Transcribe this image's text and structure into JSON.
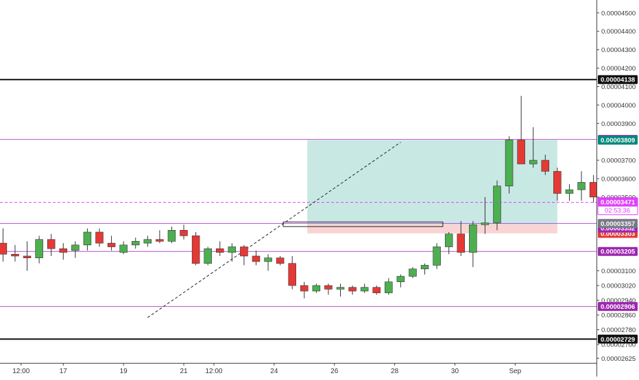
{
  "chart_data": {
    "type": "candlestick",
    "colors": {
      "up": "#4caf50",
      "down": "#e53935",
      "wick": "#333333",
      "hline_purple": "#b44fd1",
      "hline_black": "#111111",
      "current_price": "#e040fb",
      "profit_zone": "#c8e8e4",
      "loss_zone": "#fad4d4",
      "label_purple": "#9c27b0",
      "label_black": "#111111",
      "label_teal": "#00897b",
      "label_red": "#e53935",
      "label_gray": "#787b86",
      "label_pink": "#e040fb"
    },
    "x_ticks": [
      {
        "label": "12:00",
        "t": 1
      },
      {
        "label": "17",
        "t": 8
      },
      {
        "label": "19",
        "t": 18
      },
      {
        "label": "21",
        "t": 28
      },
      {
        "label": "12:00",
        "t": 33
      },
      {
        "label": "24",
        "t": 43
      },
      {
        "label": "26",
        "t": 53
      },
      {
        "label": "28",
        "t": 63
      },
      {
        "label": "30",
        "t": 73
      },
      {
        "label": "Sep",
        "t": 83
      }
    ],
    "y_ticks": [
      "0.00004500",
      "0.00004400",
      "0.00004300",
      "0.00004200",
      "0.00004100",
      "0.00004000",
      "0.00003900",
      "0.00003700",
      "0.00003600",
      "0.00003500",
      "0.00003100",
      "0.00003020",
      "0.00002940",
      "0.00002860",
      "0.00002780",
      "0.00002700",
      "0.00002625"
    ],
    "horizontal_lines": [
      {
        "value": 4.138e-05,
        "label": "0.00004138",
        "style": "black"
      },
      {
        "value": 3.813e-05,
        "label": "0.00003813",
        "style": "purple"
      },
      {
        "value": 3.357e-05,
        "label": "0.00003357",
        "style": "purple"
      },
      {
        "value": 3.205e-05,
        "label": "0.00003205",
        "style": "purple"
      },
      {
        "value": 2.906e-05,
        "label": "0.00002906",
        "style": "purple"
      },
      {
        "value": 2.729e-05,
        "label": "0.00002729",
        "style": "black"
      }
    ],
    "position": {
      "entry": 3.352e-05,
      "target": 3.809e-05,
      "stop": 3.303e-05,
      "start_t": 48.5,
      "end_t": 90,
      "entry_label": "0.00003352",
      "target_label": "0.00003809",
      "stop_label": "0.00003303",
      "gray_label": "0.00003357"
    },
    "current_price": {
      "value": 3.471e-05,
      "label": "0.00003471",
      "countdown": "02:53:36"
    },
    "trendline": {
      "t1": 22,
      "v1": 2.846e-05,
      "t2": 64,
      "v2": 3.798e-05
    },
    "box": {
      "t1": 44.5,
      "t2": 71,
      "v_top": 3.365e-05,
      "v_bottom": 3.34e-05
    },
    "candles": [
      {
        "o": 3.25e-05,
        "h": 3.33e-05,
        "l": 3.15e-05,
        "c": 3.19e-05
      },
      {
        "o": 3.19e-05,
        "h": 3.24e-05,
        "l": 3.15e-05,
        "c": 3.18e-05
      },
      {
        "o": 3.18e-05,
        "h": 3.26e-05,
        "l": 3.1e-05,
        "c": 3.17e-05
      },
      {
        "o": 3.17e-05,
        "h": 3.29e-05,
        "l": 3.14e-05,
        "c": 3.27e-05
      },
      {
        "o": 3.27e-05,
        "h": 3.3e-05,
        "l": 3.18e-05,
        "c": 3.22e-05
      },
      {
        "o": 3.22e-05,
        "h": 3.25e-05,
        "l": 3.16e-05,
        "c": 3.2e-05
      },
      {
        "o": 3.21e-05,
        "h": 3.26e-05,
        "l": 3.17e-05,
        "c": 3.24e-05
      },
      {
        "o": 3.24e-05,
        "h": 3.33e-05,
        "l": 3.21e-05,
        "c": 3.31e-05
      },
      {
        "o": 3.31e-05,
        "h": 3.33e-05,
        "l": 3.23e-05,
        "c": 3.25e-05
      },
      {
        "o": 3.25e-05,
        "h": 3.29e-05,
        "l": 3.21e-05,
        "c": 3.23e-05
      },
      {
        "o": 3.2e-05,
        "h": 3.26e-05,
        "l": 3.19e-05,
        "c": 3.24e-05
      },
      {
        "o": 3.24e-05,
        "h": 3.28e-05,
        "l": 3.22e-05,
        "c": 3.26e-05
      },
      {
        "o": 3.25e-05,
        "h": 3.29e-05,
        "l": 3.23e-05,
        "c": 3.27e-05
      },
      {
        "o": 3.27e-05,
        "h": 3.32e-05,
        "l": 3.25e-05,
        "c": 3.26e-05
      },
      {
        "o": 3.26e-05,
        "h": 3.34e-05,
        "l": 3.25e-05,
        "c": 3.32e-05
      },
      {
        "o": 3.32e-05,
        "h": 3.35e-05,
        "l": 3.27e-05,
        "c": 3.29e-05
      },
      {
        "o": 3.29e-05,
        "h": 3.31e-05,
        "l": 3.13e-05,
        "c": 3.14e-05
      },
      {
        "o": 3.14e-05,
        "h": 3.23e-05,
        "l": 3.13e-05,
        "c": 3.22e-05
      },
      {
        "o": 3.22e-05,
        "h": 3.26e-05,
        "l": 3.18e-05,
        "c": 3.2e-05
      },
      {
        "o": 3.2e-05,
        "h": 3.25e-05,
        "l": 3.15e-05,
        "c": 3.23e-05
      },
      {
        "o": 3.23e-05,
        "h": 3.24e-05,
        "l": 3.13e-05,
        "c": 3.18e-05
      },
      {
        "o": 3.18e-05,
        "h": 3.21e-05,
        "l": 3.13e-05,
        "c": 3.15e-05
      },
      {
        "o": 3.15e-05,
        "h": 3.19e-05,
        "l": 3.1e-05,
        "c": 3.17e-05
      },
      {
        "o": 3.17e-05,
        "h": 3.18e-05,
        "l": 3.13e-05,
        "c": 3.14e-05
      },
      {
        "o": 3.14e-05,
        "h": 3.18e-05,
        "l": 3e-05,
        "c": 3.02e-05
      },
      {
        "o": 3.02e-05,
        "h": 3.04e-05,
        "l": 2.95e-05,
        "c": 2.99e-05
      },
      {
        "o": 2.99e-05,
        "h": 3.03e-05,
        "l": 2.98e-05,
        "c": 3.02e-05
      },
      {
        "o": 3.02e-05,
        "h": 3.03e-05,
        "l": 2.97e-05,
        "c": 3e-05
      },
      {
        "o": 3e-05,
        "h": 3.03e-05,
        "l": 2.96e-05,
        "c": 3.01e-05
      },
      {
        "o": 3.01e-05,
        "h": 3.02e-05,
        "l": 2.97e-05,
        "c": 2.99e-05
      },
      {
        "o": 2.99e-05,
        "h": 3.03e-05,
        "l": 2.98e-05,
        "c": 3.01e-05
      },
      {
        "o": 3.01e-05,
        "h": 3.02e-05,
        "l": 2.97e-05,
        "c": 2.98e-05
      },
      {
        "o": 2.98e-05,
        "h": 3.06e-05,
        "l": 2.97e-05,
        "c": 3.04e-05
      },
      {
        "o": 3.04e-05,
        "h": 3.08e-05,
        "l": 3.01e-05,
        "c": 3.07e-05
      },
      {
        "o": 3.07e-05,
        "h": 3.12e-05,
        "l": 3.06e-05,
        "c": 3.11e-05
      },
      {
        "o": 3.11e-05,
        "h": 3.14e-05,
        "l": 3.08e-05,
        "c": 3.13e-05
      },
      {
        "o": 3.13e-05,
        "h": 3.25e-05,
        "l": 3.11e-05,
        "c": 3.23e-05
      },
      {
        "o": 3.23e-05,
        "h": 3.31e-05,
        "l": 3.19e-05,
        "c": 3.3e-05
      },
      {
        "o": 3.3e-05,
        "h": 3.37e-05,
        "l": 3.18e-05,
        "c": 3.2e-05
      },
      {
        "o": 3.2e-05,
        "h": 3.37e-05,
        "l": 3.12e-05,
        "c": 3.35e-05
      },
      {
        "o": 3.35e-05,
        "h": 3.5e-05,
        "l": 3.3e-05,
        "c": 3.36e-05
      },
      {
        "o": 3.36e-05,
        "h": 3.59e-05,
        "l": 3.32e-05,
        "c": 3.56e-05
      },
      {
        "o": 3.56e-05,
        "h": 3.83e-05,
        "l": 3.52e-05,
        "c": 3.81e-05
      },
      {
        "o": 3.81e-05,
        "h": 4.05e-05,
        "l": 3.69e-05,
        "c": 3.68e-05
      },
      {
        "o": 3.68e-05,
        "h": 3.88e-05,
        "l": 3.66e-05,
        "c": 3.7e-05
      },
      {
        "o": 3.7e-05,
        "h": 3.73e-05,
        "l": 3.62e-05,
        "c": 3.64e-05
      },
      {
        "o": 3.64e-05,
        "h": 3.66e-05,
        "l": 3.48e-05,
        "c": 3.52e-05
      },
      {
        "o": 3.52e-05,
        "h": 3.57e-05,
        "l": 3.48e-05,
        "c": 3.54e-05
      },
      {
        "o": 3.54e-05,
        "h": 3.64e-05,
        "l": 3.48e-05,
        "c": 3.58e-05
      },
      {
        "o": 3.58e-05,
        "h": 3.62e-05,
        "l": 3.47e-05,
        "c": 3.5e-05
      },
      {
        "o": 3.5e-05,
        "h": 3.6e-05,
        "l": 3.46e-05,
        "c": 3.51e-05
      },
      {
        "o": 3.51e-05,
        "h": 3.55e-05,
        "l": 3.45e-05,
        "c": 3.48e-05
      },
      {
        "o": 3.48e-05,
        "h": 3.52e-05,
        "l": 3.42e-05,
        "c": 3.45e-05
      },
      {
        "o": 3.45e-05,
        "h": 3.48e-05,
        "l": 3.41e-05,
        "c": 3.44e-05
      },
      {
        "o": 3.44e-05,
        "h": 3.47e-05,
        "l": 3.39e-05,
        "c": 3.42e-05
      },
      {
        "o": 3.42e-05,
        "h": 3.49e-05,
        "l": 3.39e-05,
        "c": 3.48e-05
      },
      {
        "o": 3.48e-05,
        "h": 3.56e-05,
        "l": 3.35e-05,
        "c": 3.46e-05
      },
      {
        "o": 3.46e-05,
        "h": 3.5e-05,
        "l": 3.43e-05,
        "c": 3.471e-05
      }
    ],
    "candle_t0": -2,
    "candle_step": 2,
    "x_domain": [
      -2.5,
      96.5
    ],
    "y_domain": [
      2.6e-05,
      4.57e-05
    ]
  }
}
